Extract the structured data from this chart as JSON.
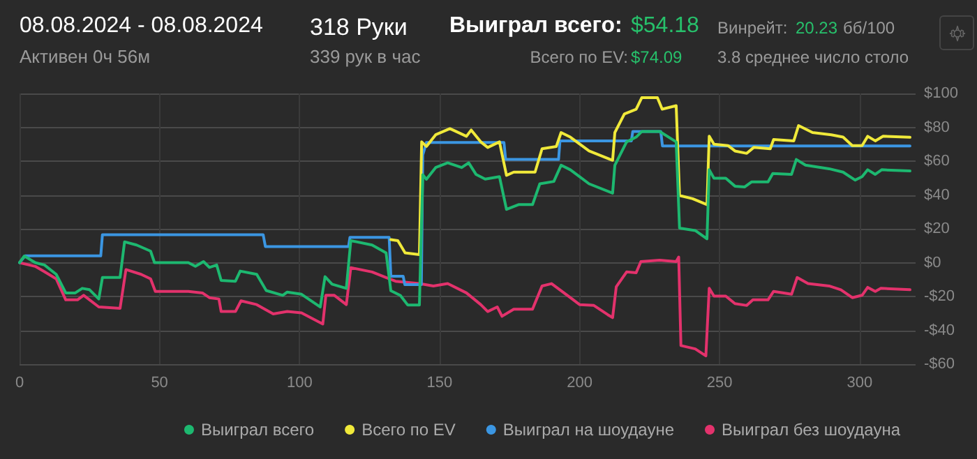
{
  "chart_data": {
    "type": "line",
    "title": "08.08.2024 - 08.08.2024",
    "subtitle": "Активен 0ч 56м",
    "annotations": [
      "318 Руки",
      "339 рук в час",
      "Выиграл всего:",
      "$54.18",
      "Винрейт:",
      "20.23",
      "бб/100",
      "Всего по EV:",
      "$74.09",
      "3.8 среднее число столо"
    ],
    "xlim": [
      0,
      320
    ],
    "xticks": [
      0,
      50,
      100,
      150,
      200,
      250,
      300
    ],
    "ylim": [
      -60,
      100
    ],
    "yticks": [
      {
        "value": 100,
        "label": "$100"
      },
      {
        "value": 80,
        "label": "$80"
      },
      {
        "value": 60,
        "label": "$60"
      },
      {
        "value": 40,
        "label": "$40"
      },
      {
        "value": 20,
        "label": "$20"
      },
      {
        "value": 0,
        "label": "$0"
      },
      {
        "value": -20,
        "label": "-$20"
      },
      {
        "value": -40,
        "label": "-$40"
      },
      {
        "value": -60,
        "label": "-$60"
      }
    ],
    "grid": true,
    "legend": "bottom right",
    "marker": "none",
    "line_style": "solid",
    "series": [
      {
        "name": "Выиграл всего",
        "color": "#1db870",
        "x": [
          0,
          1.7,
          5.6,
          8.9,
          13.1,
          16.5,
          19.9,
          22.4,
          25,
          28.3,
          29.6,
          35.9,
          37.5,
          41.8,
          46.8,
          48.2,
          60.3,
          62.8,
          65.7,
          67.8,
          70.4,
          72,
          77.1,
          78.8,
          84.7,
          88.1,
          94,
          95.6,
          100.7,
          107.4,
          109.1,
          111.6,
          116.7,
          118.3,
          125.9,
          130.9,
          132.6,
          136,
          138.6,
          142.8,
          144,
          145.3,
          148.6,
          152.9,
          157.9,
          160.4,
          163,
          166.3,
          171.4,
          173.9,
          178.2,
          183.2,
          185.8,
          190.8,
          193.4,
          196.7,
          203.4,
          211.8,
          212.6,
          216.8,
          220.2,
          222.2,
          228.6,
          234.5,
          235.7,
          241.3,
          245.5,
          246.3,
          248,
          252.2,
          255.5,
          258.9,
          261.4,
          267.3,
          269,
          275.7,
          277.4,
          280.7,
          289.1,
          294.1,
          298.4,
          300.9,
          302.9,
          305.6,
          307.9,
          318
        ],
        "values": [
          0,
          3.9,
          0,
          -1.4,
          -6.9,
          -17.9,
          -17.9,
          -15.2,
          -16,
          -21.5,
          -8.8,
          -8.8,
          12.3,
          10.4,
          6.8,
          0,
          0,
          -2.2,
          0.6,
          -2.8,
          -1.4,
          -10.5,
          -11,
          -5,
          -6.9,
          -16.5,
          -19.3,
          -17.4,
          -18.7,
          -26.2,
          -8.3,
          -12.7,
          -15.2,
          13,
          10.4,
          5.8,
          -16.6,
          -19.4,
          -25,
          -25,
          52,
          49.3,
          56.2,
          59,
          56.2,
          59,
          52.2,
          49.4,
          50.8,
          31.5,
          34.3,
          34.3,
          46.6,
          48,
          57.6,
          54.9,
          46.6,
          41.1,
          57.6,
          71.4,
          74.2,
          77.5,
          77.5,
          71.4,
          20.4,
          19,
          14.1,
          54.9,
          49.9,
          49.9,
          45.2,
          44.7,
          47.7,
          47.7,
          52.7,
          52.2,
          61,
          57.6,
          55.5,
          53.5,
          48.8,
          50.8,
          54.9,
          52.2,
          54.9,
          54.18
        ]
      },
      {
        "name": "Всего по EV",
        "color": "#f0e93a",
        "x": [
          132.6,
          135.1,
          137.7,
          142.8,
          143.6,
          145.3,
          148.6,
          153.7,
          159.6,
          161.3,
          164.7,
          167.2,
          171.4,
          173.9,
          176.5,
          184.1,
          186.6,
          191.7,
          193.4,
          196.7,
          203.4,
          211.8,
          212.6,
          216,
          220.2,
          222.2,
          227.8,
          229.5,
          234.5,
          235.7,
          240.4,
          245.5,
          246.3,
          248,
          253,
          255.5,
          259.7,
          262.2,
          268.1,
          269.3,
          276.5,
          278.2,
          283.2,
          289.9,
          294.1,
          297.4,
          300.9,
          302.9,
          305.6,
          308.4,
          318
        ],
        "values": [
          13.6,
          13,
          5.8,
          4.7,
          71.4,
          68.7,
          75.6,
          79.2,
          74.7,
          78.4,
          71.4,
          68.1,
          71.4,
          51.6,
          53.5,
          53.5,
          67.3,
          68.7,
          76.9,
          74.2,
          66,
          60.5,
          76.9,
          87.9,
          90.7,
          97.5,
          97.5,
          90.7,
          92.8,
          39.7,
          37.8,
          34.3,
          74.7,
          70,
          69.2,
          66,
          64.6,
          68.1,
          67.3,
          72.8,
          72,
          81,
          76.9,
          75.6,
          74.2,
          69.2,
          69.2,
          74.7,
          72,
          74.7,
          74.09
        ]
      },
      {
        "name": "Выиграл на шоудауне",
        "color": "#3b96e2",
        "x": [
          0,
          2,
          29,
          29.6,
          87,
          87.8,
          117.5,
          118,
          132,
          132.6,
          137,
          137.6,
          143.5,
          144,
          145.3,
          173,
          173.6,
          192.5,
          193,
          218.5,
          219,
          229,
          229.6,
          318
        ],
        "values": [
          0,
          4,
          4,
          16.5,
          16.5,
          9.5,
          9.5,
          15,
          15,
          -8,
          -8,
          -13,
          -13,
          63.6,
          71,
          71,
          61,
          61,
          72,
          72,
          77.5,
          77.5,
          69,
          69
        ]
      },
      {
        "name": "Выиграл без шоудауна",
        "color": "#e3326c",
        "x": [
          0,
          5.6,
          9,
          13.1,
          16.5,
          20.7,
          22.9,
          28.3,
          35.9,
          38,
          43.4,
          46.8,
          48.5,
          60.3,
          65.3,
          67.8,
          71.2,
          72,
          77.1,
          79.1,
          84.7,
          90.6,
          95.6,
          100.7,
          108.3,
          109.4,
          112.4,
          116.7,
          118.3,
          125.9,
          130.9,
          134.3,
          142.8,
          147.8,
          152.9,
          159.6,
          164.7,
          167.2,
          170.6,
          172.3,
          176.5,
          183.2,
          186.6,
          190,
          196.7,
          200,
          205.1,
          210.1,
          211.8,
          213.1,
          216.8,
          220.2,
          221.9,
          228.6,
          234.5,
          235.4,
          236.2,
          241.3,
          245.1,
          246.3,
          248,
          252.2,
          255.5,
          259.7,
          261.9,
          267.3,
          269.3,
          275.7,
          277.7,
          281.6,
          289.1,
          293.3,
          297.4,
          300.9,
          302.9,
          305.6,
          307.6,
          318
        ],
        "values": [
          0,
          -2.2,
          -5.5,
          -9.6,
          -22,
          -22,
          -19.3,
          -26.2,
          -27,
          -4.1,
          -6.9,
          -9.6,
          -17,
          -17,
          -17.9,
          -20.7,
          -21.5,
          -28.9,
          -28.9,
          -22.6,
          -24.8,
          -30.3,
          -28.9,
          -29.7,
          -36.3,
          -19.3,
          -19.3,
          -24.8,
          -3,
          -5.5,
          -8.8,
          -11,
          -12.4,
          -13.8,
          -12.4,
          -17.9,
          -24.8,
          -28.9,
          -26.2,
          -31.7,
          -27.5,
          -27.5,
          -13.8,
          -12.4,
          -20.7,
          -24.8,
          -25.3,
          -30.8,
          -32.5,
          -14.3,
          -5.5,
          -6,
          0.6,
          1.4,
          0.6,
          3.3,
          -49,
          -51,
          -55.1,
          -15.2,
          -19.8,
          -19.8,
          -24.2,
          -25.3,
          -22,
          -22,
          -17,
          -18.7,
          -8.8,
          -12.4,
          -13.8,
          -16,
          -20.7,
          -19.3,
          -14.6,
          -17,
          -15.2,
          -16
        ]
      }
    ]
  }
}
